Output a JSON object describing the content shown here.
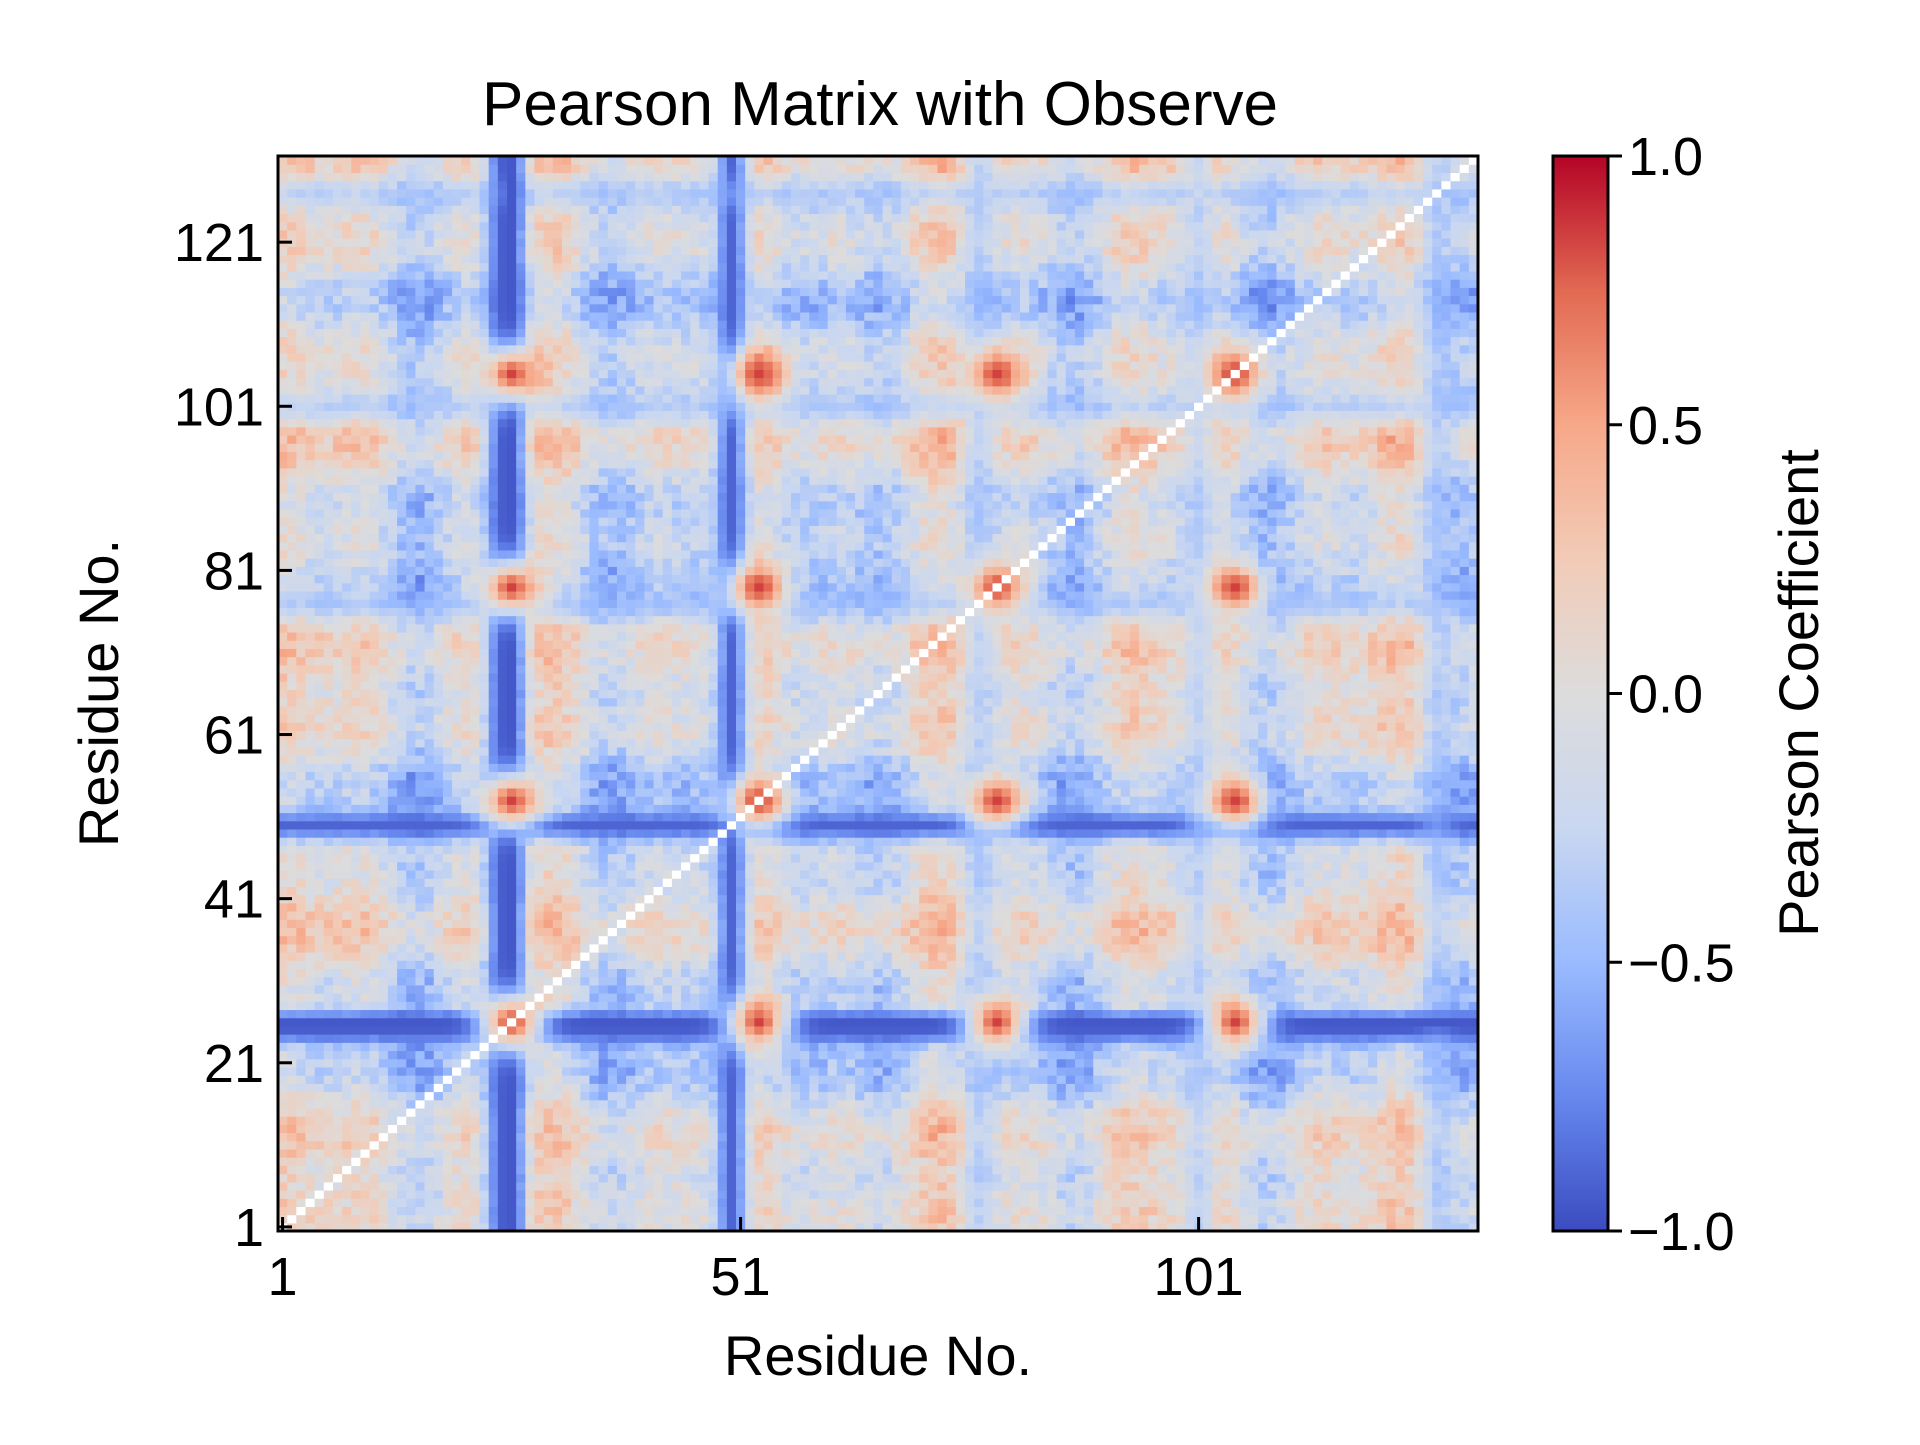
{
  "chart_data": {
    "type": "heatmap",
    "title": "Pearson Matrix with Observe",
    "xlabel": "Residue No.",
    "ylabel": "Residue No.",
    "colorbar_label": "Pearson Coefficient",
    "colormap": "coolwarm",
    "colormap_stops": [
      "#3b4cc0",
      "#6788ee",
      "#9abbff",
      "#c9d7f0",
      "#dddcdc",
      "#f2cbb7",
      "#f7a889",
      "#e26952",
      "#b40426"
    ],
    "value_range": [
      -1.0,
      1.0
    ],
    "n_residues": 131,
    "residue_start": 1,
    "x_ticks": [
      "1",
      "51",
      "101"
    ],
    "y_ticks": [
      "1",
      "21",
      "41",
      "61",
      "81",
      "101",
      "121"
    ],
    "colorbar_ticks": [
      "1.0",
      "0.5",
      "0.0",
      "−0.5",
      "−1.0"
    ],
    "diagonal_value": 1.0,
    "hotspot_residues": [
      26,
      53,
      79,
      105
    ],
    "hotspot_value": 0.85,
    "negative_band_row": 26,
    "negative_band_value": -0.95,
    "negative_band_columns": [
      26,
      52,
      79,
      106
    ],
    "negative_column_residues": [
      25,
      50
    ],
    "negative_column_value": -0.9,
    "weak_negative_column_residues": [
      77,
      101,
      127
    ],
    "weak_negative_column_value": -0.55,
    "background_mean": -0.1,
    "grid": false
  }
}
